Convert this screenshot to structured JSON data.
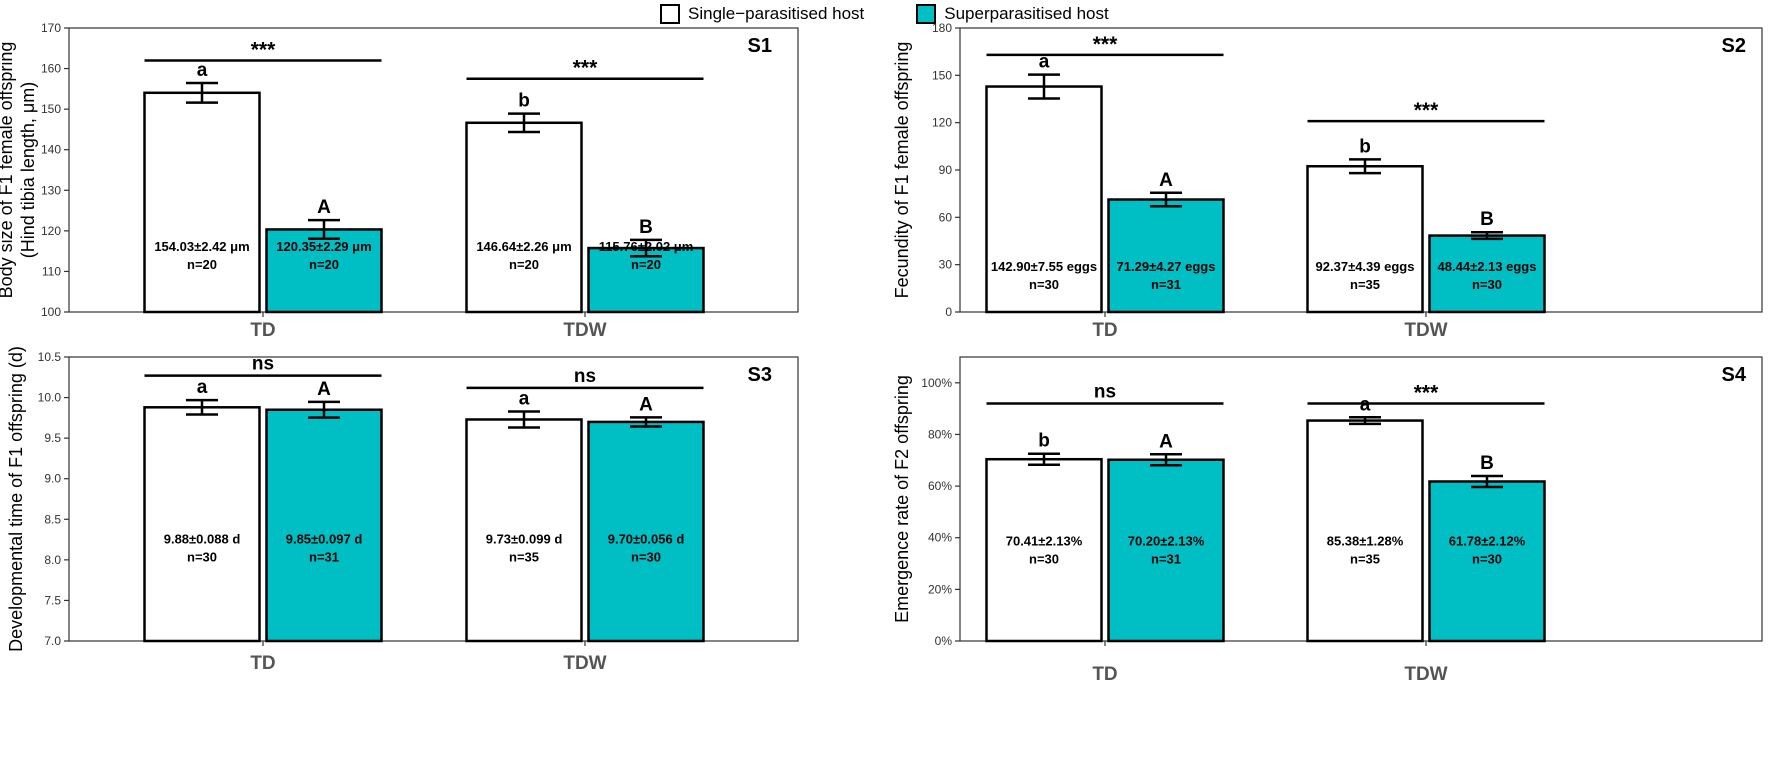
{
  "legend": {
    "single_label": "Single−parasitised host",
    "super_label": "Superparasitised host"
  },
  "colors": {
    "single": "#ffffff",
    "super": "#00bfc4",
    "stroke": "#000000"
  },
  "chart_data": [
    {
      "type": "bar",
      "panel": "S1",
      "ylabel_lines": [
        "Body size of F1 female offspring",
        "(Hind tibia length, μm)"
      ],
      "ylim": [
        100,
        170
      ],
      "yticks": [
        100,
        110,
        120,
        130,
        140,
        150,
        160,
        170
      ],
      "ytick_labels": [
        "100",
        "110",
        "120",
        "130",
        "140",
        "150",
        "160",
        "170"
      ],
      "categories": [
        "TD",
        "TDW"
      ],
      "series": [
        {
          "name": "Single−parasitised host",
          "values": [
            154.03,
            146.64
          ],
          "errors": [
            2.42,
            2.26
          ],
          "letters": [
            "a",
            "b"
          ],
          "labels": [
            "154.03±2.42 μm",
            "146.64±2.26 μm"
          ],
          "n": [
            "n=20",
            "n=20"
          ]
        },
        {
          "name": "Superparasitised host",
          "values": [
            120.35,
            115.76
          ],
          "errors": [
            2.29,
            2.02
          ],
          "letters": [
            "A",
            "B"
          ],
          "labels": [
            "120.35±2.29 μm",
            "115.76±2.02 μm"
          ],
          "n": [
            "n=20",
            "n=20"
          ]
        }
      ],
      "significance": [
        {
          "category": "TD",
          "label": "***",
          "y": 162
        },
        {
          "category": "TDW",
          "label": "***",
          "y": 157.5
        }
      ],
      "value_label_y": 115
    },
    {
      "type": "bar",
      "panel": "S2",
      "ylabel_lines": [
        "Fecundity of F1 female offspring"
      ],
      "ylim": [
        0,
        180
      ],
      "yticks": [
        0,
        30,
        60,
        90,
        120,
        150,
        180
      ],
      "ytick_labels": [
        "0",
        "30",
        "60",
        "90",
        "120",
        "150",
        "180"
      ],
      "categories": [
        "TD",
        "TDW"
      ],
      "series": [
        {
          "name": "Single−parasitised host",
          "values": [
            142.9,
            92.37
          ],
          "errors": [
            7.55,
            4.39
          ],
          "letters": [
            "a",
            "b"
          ],
          "labels": [
            "142.90±7.55 eggs",
            "92.37±4.39 eggs"
          ],
          "n": [
            "n=30",
            "n=35"
          ]
        },
        {
          "name": "Superparasitised host",
          "values": [
            71.29,
            48.44
          ],
          "errors": [
            4.27,
            2.13
          ],
          "letters": [
            "A",
            "B"
          ],
          "labels": [
            "71.29±4.27 eggs",
            "48.44±2.13 eggs"
          ],
          "n": [
            "n=31",
            "n=30"
          ]
        }
      ],
      "significance": [
        {
          "category": "TD",
          "label": "***",
          "y": 163
        },
        {
          "category": "TDW",
          "label": "***",
          "y": 121
        }
      ],
      "value_label_y": 26
    },
    {
      "type": "bar",
      "panel": "S3",
      "ylabel_lines": [
        "Developmental time of F1 offspring (d)"
      ],
      "ylim": [
        7.0,
        10.5
      ],
      "yticks": [
        7.0,
        7.5,
        8.0,
        8.5,
        9.0,
        9.5,
        10.0,
        10.5
      ],
      "ytick_labels": [
        "7.0",
        "7.5",
        "8.0",
        "8.5",
        "9.0",
        "9.5",
        "10.0",
        "10.5"
      ],
      "categories": [
        "TD",
        "TDW"
      ],
      "series": [
        {
          "name": "Single−parasitised host",
          "values": [
            9.88,
            9.73
          ],
          "errors": [
            0.088,
            0.099
          ],
          "letters": [
            "a",
            "a"
          ],
          "labels": [
            "9.88±0.088 d",
            "9.73±0.099 d"
          ],
          "n": [
            "n=30",
            "n=35"
          ]
        },
        {
          "name": "Superparasitised host",
          "values": [
            9.85,
            9.7
          ],
          "errors": [
            0.097,
            0.056
          ],
          "letters": [
            "A",
            "A"
          ],
          "labels": [
            "9.85±0.097 d",
            "9.70±0.056 d"
          ],
          "n": [
            "n=31",
            "n=30"
          ]
        }
      ],
      "significance": [
        {
          "category": "TD",
          "label": "ns",
          "y": 10.27
        },
        {
          "category": "TDW",
          "label": "ns",
          "y": 10.12
        }
      ],
      "value_label_y": 8.2
    },
    {
      "type": "bar",
      "panel": "S4",
      "ylabel_lines": [
        "Emergence rate of F2 offspring"
      ],
      "ylim": [
        0,
        110
      ],
      "yticks": [
        0,
        20,
        40,
        60,
        80,
        100
      ],
      "ytick_labels": [
        "0%",
        "20%",
        "40%",
        "60%",
        "80%",
        "100%"
      ],
      "categories": [
        "TD",
        "TDW"
      ],
      "series": [
        {
          "name": "Single−parasitised host",
          "values": [
            70.41,
            85.38
          ],
          "errors": [
            2.13,
            1.28
          ],
          "letters": [
            "b",
            "a"
          ],
          "labels": [
            "70.41±2.13%",
            "85.38±1.28%"
          ],
          "n": [
            "n=30",
            "n=35"
          ]
        },
        {
          "name": "Superparasitised host",
          "values": [
            70.2,
            61.78
          ],
          "errors": [
            2.13,
            2.12
          ],
          "letters": [
            "A",
            "B"
          ],
          "labels": [
            "70.20±2.13%",
            "61.78±2.12%"
          ],
          "n": [
            "n=31",
            "n=30"
          ]
        }
      ],
      "significance": [
        {
          "category": "TD",
          "label": "ns",
          "y": 92
        },
        {
          "category": "TDW",
          "label": "***",
          "y": 92
        }
      ],
      "value_label_y": 37
    }
  ]
}
